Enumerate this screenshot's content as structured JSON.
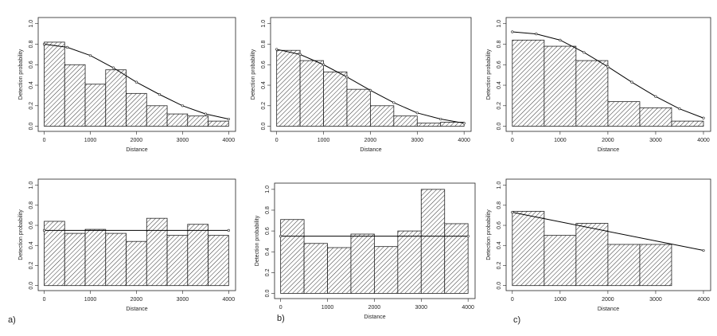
{
  "chart_data": [
    {
      "type": "histogram",
      "xlabel": "Distance",
      "ylabel": "Detection probability",
      "bins": [
        0,
        444,
        889,
        1333,
        1778,
        2222,
        2667,
        3111,
        3556,
        4000
      ],
      "counts": [
        0.82,
        0.6,
        0.41,
        0.55,
        0.32,
        0.2,
        0.12,
        0.1,
        0.05
      ],
      "curve": {
        "x": [
          0,
          500,
          1000,
          1500,
          2000,
          2500,
          3000,
          3500,
          4000
        ],
        "values": [
          0.8,
          0.77,
          0.69,
          0.57,
          0.43,
          0.31,
          0.2,
          0.12,
          0.07
        ],
        "color": "#000000"
      },
      "xlim": [
        -130,
        4150
      ],
      "ylim": [
        -0.05,
        1.06
      ],
      "xticks": [
        0,
        1000,
        2000,
        3000,
        4000
      ],
      "yticks": [
        {
          "value": 0,
          "label": "0.0"
        },
        {
          "value": 0.2,
          "label": "0.2"
        },
        {
          "value": 0.4,
          "label": "0.4"
        },
        {
          "value": 0.6,
          "label": "0.6"
        },
        {
          "value": 0.8,
          "label": "0.8"
        },
        {
          "value": 1,
          "label": "1.0"
        }
      ]
    },
    {
      "type": "histogram",
      "xlabel": "Distance",
      "ylabel": "Detection probability",
      "bins": [
        0,
        500,
        1000,
        1500,
        2000,
        2500,
        3000,
        3500,
        4000
      ],
      "counts": [
        0.74,
        0.64,
        0.53,
        0.36,
        0.2,
        0.1,
        0.03,
        0.04
      ],
      "curve": {
        "x": [
          0,
          500,
          1000,
          1500,
          2000,
          2500,
          3000,
          3500,
          4000
        ],
        "values": [
          0.75,
          0.7,
          0.6,
          0.48,
          0.35,
          0.23,
          0.13,
          0.07,
          0.03
        ],
        "color": "#000000"
      },
      "xlim": [
        -130,
        4150
      ],
      "ylim": [
        -0.05,
        1.06
      ],
      "xticks": [
        0,
        1000,
        2000,
        3000,
        4000
      ],
      "yticks": [
        {
          "value": 0,
          "label": "0.0"
        },
        {
          "value": 0.2,
          "label": "0.2"
        },
        {
          "value": 0.4,
          "label": "0.4"
        },
        {
          "value": 0.6,
          "label": "0.6"
        },
        {
          "value": 0.8,
          "label": "0.8"
        },
        {
          "value": 1,
          "label": "1.0"
        }
      ]
    },
    {
      "type": "histogram",
      "xlabel": "Distance",
      "ylabel": "Detection probability",
      "bins": [
        0,
        667,
        1333,
        2000,
        2667,
        3333,
        4000
      ],
      "counts": [
        0.84,
        0.78,
        0.64,
        0.24,
        0.18,
        0.05
      ],
      "curve": {
        "x": [
          0,
          500,
          1000,
          1500,
          2000,
          2500,
          3000,
          3500,
          4000
        ],
        "values": [
          0.92,
          0.9,
          0.84,
          0.72,
          0.58,
          0.43,
          0.29,
          0.17,
          0.08
        ],
        "color": "#000000"
      },
      "xlim": [
        -130,
        4150
      ],
      "ylim": [
        -0.05,
        1.06
      ],
      "xticks": [
        0,
        1000,
        2000,
        3000,
        4000
      ],
      "yticks": [
        {
          "value": 0,
          "label": "0.0"
        },
        {
          "value": 0.2,
          "label": "0.2"
        },
        {
          "value": 0.4,
          "label": "0.4"
        },
        {
          "value": 0.6,
          "label": "0.6"
        },
        {
          "value": 0.8,
          "label": "0.8"
        },
        {
          "value": 1,
          "label": "1.0"
        }
      ]
    },
    {
      "type": "histogram",
      "xlabel": "Distance",
      "ylabel": "Detection probability",
      "panel_label": "a)",
      "bins": [
        0,
        444,
        889,
        1333,
        1778,
        2222,
        2667,
        3111,
        3556,
        4000
      ],
      "counts": [
        0.64,
        0.52,
        0.56,
        0.52,
        0.44,
        0.67,
        0.5,
        0.61,
        0.5
      ],
      "curve": {
        "x": [
          0,
          4000
        ],
        "values": [
          0.55,
          0.55
        ],
        "color": "#000000"
      },
      "xlim": [
        -130,
        4150
      ],
      "ylim": [
        -0.05,
        1.06
      ],
      "xticks": [
        0,
        1000,
        2000,
        3000,
        4000
      ],
      "yticks": [
        {
          "value": 0,
          "label": "0.0"
        },
        {
          "value": 0.2,
          "label": "0.2"
        },
        {
          "value": 0.4,
          "label": "0.4"
        },
        {
          "value": 0.6,
          "label": "0.6"
        },
        {
          "value": 0.8,
          "label": "0.8"
        },
        {
          "value": 1,
          "label": "1.0"
        }
      ]
    },
    {
      "type": "histogram",
      "xlabel": "Distance",
      "ylabel": "Detection probability",
      "panel_label": "b)",
      "bins": [
        0,
        500,
        1000,
        1500,
        2000,
        2500,
        3000,
        3500,
        4000
      ],
      "counts": [
        0.71,
        0.48,
        0.44,
        0.57,
        0.45,
        0.6,
        1.0,
        0.67
      ],
      "curve": {
        "x": [
          0,
          4000
        ],
        "values": [
          0.55,
          0.55
        ],
        "color": "#000000"
      },
      "xlim": [
        -130,
        4150
      ],
      "ylim": [
        -0.05,
        1.06
      ],
      "xticks": [
        0,
        1000,
        2000,
        3000,
        4000
      ],
      "yticks": [
        {
          "value": 0,
          "label": "0.0"
        },
        {
          "value": 0.2,
          "label": "0.2"
        },
        {
          "value": 0.4,
          "label": "0.4"
        },
        {
          "value": 0.6,
          "label": "0.6"
        },
        {
          "value": 0.8,
          "label": "0.8"
        },
        {
          "value": 1,
          "label": "1.0"
        }
      ]
    },
    {
      "type": "histogram",
      "xlabel": "Distance",
      "ylabel": "Detection probability",
      "panel_label": "c)",
      "bins": [
        0,
        667,
        1333,
        2000,
        2667,
        3333,
        4000
      ],
      "counts": [
        0.74,
        0.5,
        0.62,
        0.41,
        0.41,
        0
      ],
      "curve": {
        "x": [
          0,
          4000
        ],
        "values": [
          0.73,
          0.35
        ],
        "color": "#000000"
      },
      "xlim": [
        -130,
        4150
      ],
      "ylim": [
        -0.05,
        1.06
      ],
      "xticks": [
        0,
        1000,
        2000,
        3000,
        4000
      ],
      "yticks": [
        {
          "value": 0,
          "label": "0.0"
        },
        {
          "value": 0.2,
          "label": "0.2"
        },
        {
          "value": 0.4,
          "label": "0.4"
        },
        {
          "value": 0.6,
          "label": "0.6"
        },
        {
          "value": 0.8,
          "label": "0.8"
        },
        {
          "value": 1,
          "label": "1.0"
        }
      ]
    }
  ]
}
